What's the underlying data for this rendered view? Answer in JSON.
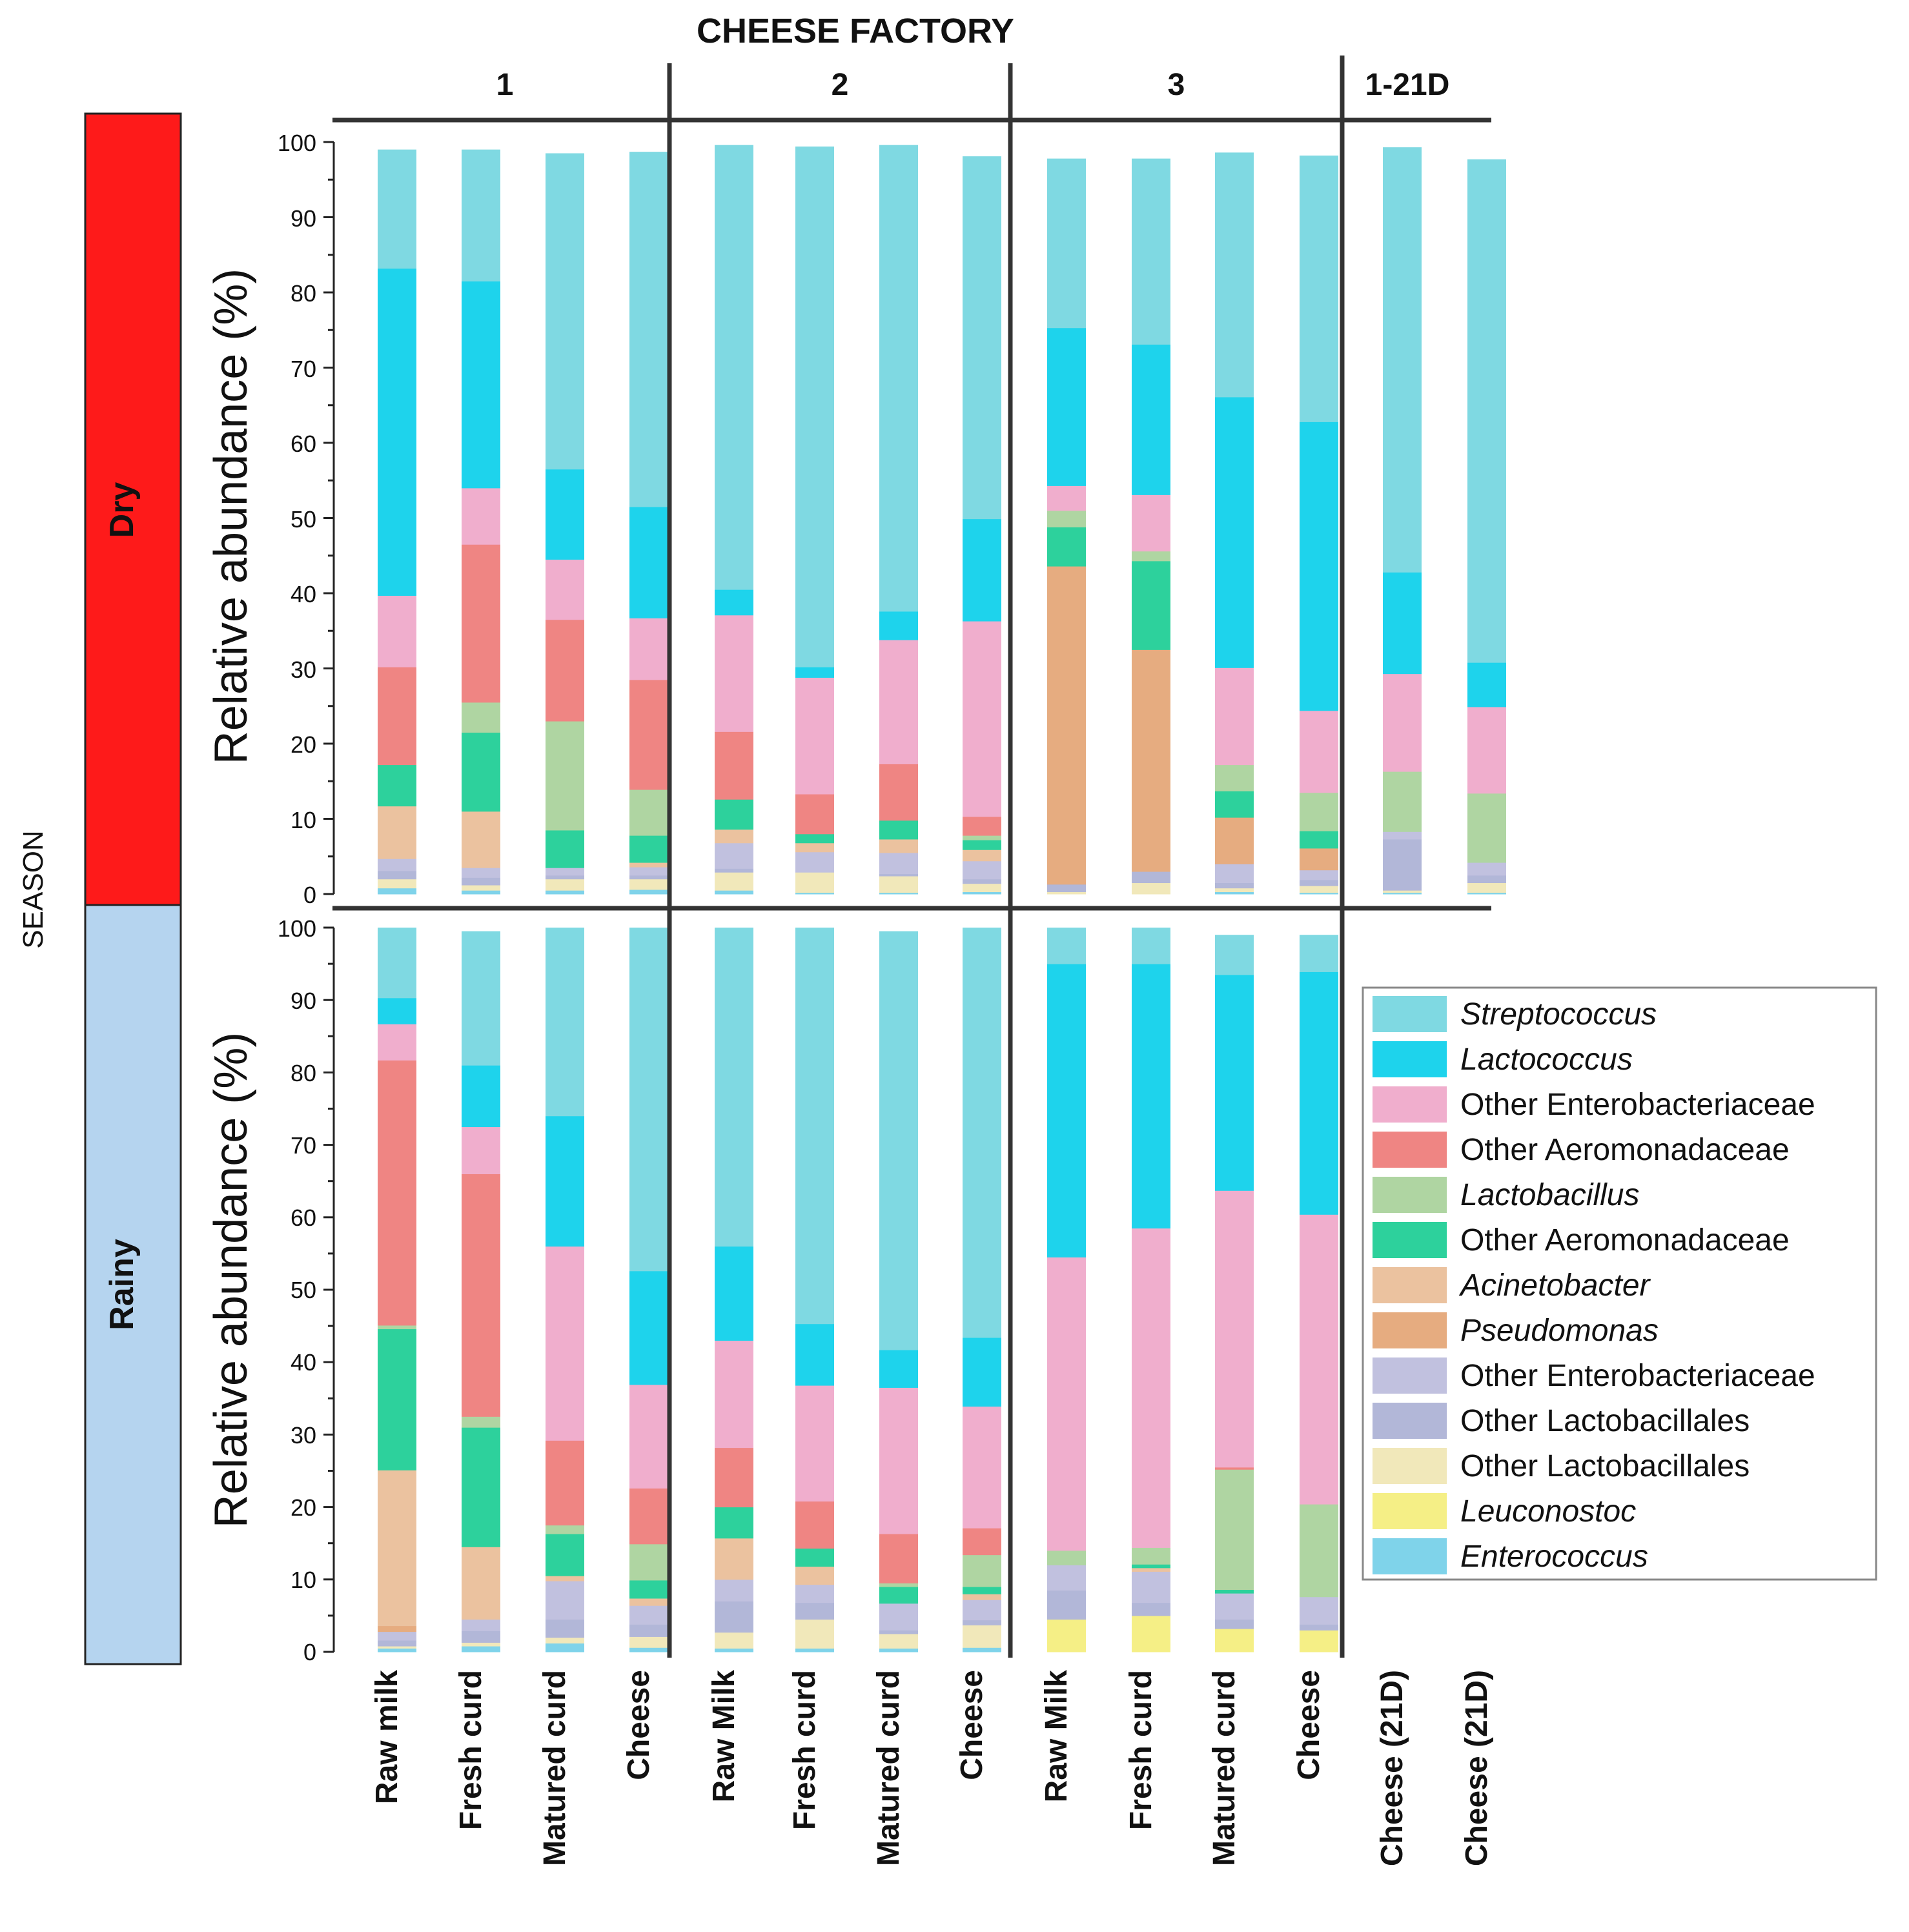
{
  "chart_data": {
    "type": "bar",
    "stacked": true,
    "title": "CHEESE FACTORY",
    "row_header": "SEASON",
    "ylabel": "Relative abundance (%)",
    "ylim": [
      0,
      100
    ],
    "yticks": [
      "0",
      "10",
      "20",
      "30",
      "40",
      "50",
      "60",
      "70",
      "80",
      "90",
      "100"
    ],
    "factories": [
      "1",
      "2",
      "3",
      "1-21D"
    ],
    "categories": [
      "Raw milk",
      "Fresh curd",
      "Matured curd",
      "Cheese",
      "Raw Milk",
      "Fresh curd",
      "Matured curd",
      "Cheese",
      "Raw Milk",
      "Fresh curd",
      "Matured curd",
      "Cheese",
      "Cheese (21D)",
      "Cheese (21D)"
    ],
    "legend": {
      "placement": "right",
      "order": [
        0,
        1,
        2,
        3,
        4,
        5,
        6,
        7,
        8,
        9,
        10,
        11,
        12
      ],
      "italic": [
        true,
        true,
        false,
        false,
        true,
        false,
        true,
        true,
        false,
        false,
        false,
        true,
        true
      ]
    },
    "series_colors": [
      "#7fd3ea",
      "#f5ef86",
      "#f1e8ba",
      "#b2b7d8",
      "#c1c1df",
      "#e6ac80",
      "#ebc29f",
      "#2dd19c",
      "#afd5a2",
      "#ef8583",
      "#f0aecd",
      "#1ed3ec",
      "#7fd9e2"
    ],
    "series_names": [
      "Enterococcus",
      "Leuconostoc",
      "Other Lactobacillales",
      "Other Lactobacillales",
      "Other Enterobacteriaceae",
      "Pseudomonas",
      "Acinetobacter",
      "Other Aeromonadaceae",
      "Lactobacillus",
      "Other Aeromonadaceae",
      "Other Enterobacteriaceae",
      "Lactococcus",
      "Streptococcus"
    ],
    "seasons": [
      {
        "name": "Dry",
        "color": "#fe1a1a",
        "bars": [
          [
            0.8,
            0,
            1.2,
            1.1,
            1.6,
            0,
            7,
            5.5,
            0,
            13,
            9.5,
            43.5,
            15.8
          ],
          [
            0.5,
            0,
            0.7,
            1,
            1.3,
            0,
            7.5,
            10.5,
            4,
            21,
            7.5,
            27.5,
            17.5
          ],
          [
            0.5,
            0,
            1.5,
            0.5,
            1,
            0,
            0,
            5,
            14.5,
            13.5,
            8,
            12,
            42
          ],
          [
            0.6,
            0,
            1.4,
            0.5,
            1.1,
            0,
            0.6,
            3.6,
            6.1,
            14.6,
            8.2,
            14.8,
            47.2
          ],
          [
            0.5,
            0,
            2.4,
            0.5,
            3.4,
            0,
            1.8,
            4,
            0,
            9,
            15.5,
            3.4,
            59.1
          ],
          [
            0.2,
            0,
            2.7,
            0,
            2.7,
            0,
            1.2,
            1.2,
            0,
            5.3,
            15.5,
            1.4,
            69.2
          ],
          [
            0.2,
            0,
            2.2,
            0.3,
            2.8,
            0,
            1.8,
            2.5,
            0,
            7.5,
            16.5,
            3.8,
            62
          ],
          [
            0.3,
            0,
            1.1,
            0.6,
            2.4,
            0,
            1.5,
            1.3,
            0.6,
            2.5,
            26,
            13.6,
            48.2
          ],
          [
            0,
            0,
            0.3,
            1,
            0,
            42.3,
            0,
            5.2,
            2.2,
            0,
            3.3,
            21,
            22.5
          ],
          [
            0,
            0,
            1.5,
            1.5,
            0,
            29.5,
            0,
            11.8,
            1.3,
            0,
            7.5,
            20,
            24.7
          ],
          [
            0.3,
            0,
            0.5,
            0.7,
            2.5,
            6.2,
            0,
            3.5,
            3.5,
            0,
            12.9,
            36,
            32.5
          ],
          [
            0.2,
            0,
            0.9,
            0.8,
            1.3,
            2.9,
            0,
            2.3,
            5.1,
            0,
            10.9,
            38.4,
            35.4
          ],
          [
            0.2,
            0,
            0.3,
            6.8,
            1,
            0,
            0,
            0,
            8,
            0,
            13,
            13.5,
            56.5
          ],
          [
            0.2,
            0,
            1.3,
            1,
            1.7,
            0,
            0,
            0,
            9.2,
            0,
            11.5,
            5.9,
            66.9
          ]
        ]
      },
      {
        "name": "Rainy",
        "color": "#b5d4ef",
        "bars": [
          [
            0.5,
            0,
            0.3,
            0.8,
            1.2,
            0.8,
            21.5,
            19.5,
            0.5,
            36.6,
            5,
            3.6,
            9.7
          ],
          [
            0.8,
            0,
            0.5,
            1.6,
            1.6,
            0,
            10,
            16.5,
            1.5,
            33.5,
            6.5,
            8.5,
            18.5
          ],
          [
            1.2,
            0,
            0.8,
            2.5,
            5.3,
            0,
            0.7,
            5.8,
            1.2,
            11.7,
            26.8,
            18,
            26
          ],
          [
            0.6,
            0,
            1.5,
            1.7,
            2.6,
            0,
            1,
            2.5,
            5,
            7.7,
            14.3,
            15.7,
            47.4
          ],
          [
            0.5,
            0,
            2.2,
            4.3,
            3,
            0,
            5.7,
            4.3,
            0,
            8.2,
            14.8,
            13,
            44
          ],
          [
            0.5,
            0,
            4,
            2.3,
            2.5,
            0,
            2.5,
            2.5,
            0,
            6.5,
            16,
            8.5,
            54.7
          ],
          [
            0.5,
            0,
            2,
            0.5,
            3.7,
            0,
            0,
            2.3,
            0.5,
            6.8,
            20.2,
            5.2,
            57.8
          ],
          [
            0.6,
            0,
            3.1,
            0.7,
            2.8,
            0,
            0.8,
            1,
            4.4,
            3.7,
            16.8,
            9.5,
            56.6
          ],
          [
            0,
            4.5,
            0,
            4,
            3.5,
            0,
            0,
            0,
            2,
            0,
            40.5,
            40.5,
            5
          ],
          [
            0,
            5,
            0,
            1.8,
            4.3,
            0,
            0.5,
            0.5,
            2.3,
            0,
            44.1,
            36.5,
            5
          ],
          [
            0,
            3.2,
            0,
            1.3,
            3.6,
            0,
            0,
            0.5,
            16.6,
            0.3,
            38.2,
            29.8,
            5.5
          ],
          [
            0,
            3,
            0,
            0.8,
            3.8,
            0,
            0,
            0,
            12.8,
            0,
            40,
            33.5,
            5.1
          ],
          [],
          []
        ]
      }
    ]
  },
  "legend_labels": [
    "Streptococcus",
    "Lactococcus",
    "Other Enterobacteriaceae",
    "Other Aeromonadaceae",
    "Lactobacillus",
    "Other Aeromonadaceae",
    "Acinetobacter",
    "Pseudomonas",
    "Other Enterobacteriaceae",
    "Other Lactobacillales",
    "Other Lactobacillales",
    "Leuconostoc",
    "Enterococcus"
  ],
  "legend_colors": [
    "#7fd9e2",
    "#1ed3ec",
    "#f0aecd",
    "#ef8583",
    "#afd5a2",
    "#2dd19c",
    "#ebc29f",
    "#e6ac80",
    "#c1c1df",
    "#b2b7d8",
    "#f1e8ba",
    "#f5ef86",
    "#7fd3ea"
  ]
}
